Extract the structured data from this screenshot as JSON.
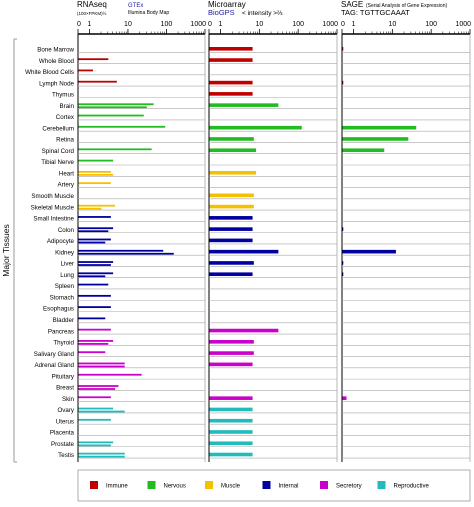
{
  "chart_data": {
    "type": "bar",
    "y_axis_label": "Major Tissues",
    "panels": [
      {
        "id": "rnaseq",
        "title": "RNAseq",
        "subtitle": "(100×FPKM)½",
        "sources": [
          {
            "text": "GTEx",
            "color": "#1a1aa6"
          },
          {
            "text": "Illumina Body Map",
            "color": "#000000"
          }
        ],
        "ticks": [
          "0",
          "1",
          "10",
          "100",
          "1000"
        ]
      },
      {
        "id": "microarray",
        "title": "Microarray",
        "subtitle": "< intensity >⅔",
        "sources": [
          {
            "text": "BioGPS",
            "color": "#1a1aa6"
          }
        ],
        "ticks": [
          "0",
          "1",
          "10",
          "100",
          "1000"
        ]
      },
      {
        "id": "sage",
        "title": "SAGE",
        "subtitle": "(Serial Analysis of Gene Expression)",
        "sources": [
          {
            "text": "TAG: TGTTGCAAAT",
            "color": "#000000"
          }
        ],
        "ticks": [
          "0",
          "1",
          "10",
          "100",
          "1000"
        ]
      }
    ],
    "legend": [
      {
        "key": "immune",
        "label": "Immune",
        "color": "#c00000"
      },
      {
        "key": "nervous",
        "label": "Nervous",
        "color": "#22bb22"
      },
      {
        "key": "muscle",
        "label": "Muscle",
        "color": "#f5c000"
      },
      {
        "key": "internal",
        "label": "Internal",
        "color": "#0000a0"
      },
      {
        "key": "secretory",
        "label": "Secretory",
        "color": "#cc00cc"
      },
      {
        "key": "reproductive",
        "label": "Reproductive",
        "color": "#22bbbb"
      }
    ],
    "tissues": [
      {
        "name": "Bone Marrow",
        "group": "immune",
        "rna": [],
        "micro": 6.5,
        "sage": 0.05
      },
      {
        "name": "Whole Blood",
        "group": "immune",
        "rna": [
          3.0
        ],
        "micro": 6.5,
        "sage": 0
      },
      {
        "name": "White Blood Cells",
        "group": "immune",
        "rna": [
          1.2
        ],
        "micro": 0,
        "sage": 0
      },
      {
        "name": "Lymph Node",
        "group": "immune",
        "rna": [
          5.0
        ],
        "micro": 6.5,
        "sage": 0.05
      },
      {
        "name": "Thymus",
        "group": "immune",
        "rna": [],
        "micro": 6.5,
        "sage": 0
      },
      {
        "name": "Brain",
        "group": "nervous",
        "rna": [
          45,
          30
        ],
        "micro": 30,
        "sage": 0
      },
      {
        "name": "Cortex",
        "group": "nervous",
        "rna": [
          25
        ],
        "micro": 0,
        "sage": 0
      },
      {
        "name": "Cerebellum",
        "group": "nervous",
        "rna": [
          90
        ],
        "micro": 120,
        "sage": 40
      },
      {
        "name": "Retina",
        "group": "nervous",
        "rna": [],
        "micro": 7,
        "sage": 25
      },
      {
        "name": "Spinal Cord",
        "group": "nervous",
        "rna": [
          40
        ],
        "micro": 8,
        "sage": 6
      },
      {
        "name": "Tibial Nerve",
        "group": "nervous",
        "rna": [
          4.0
        ],
        "micro": 0,
        "sage": 0
      },
      {
        "name": "Heart",
        "group": "muscle",
        "rna": [
          3.5,
          4.0
        ],
        "micro": 8,
        "sage": 0
      },
      {
        "name": "Artery",
        "group": "muscle",
        "rna": [
          3.5
        ],
        "micro": 0,
        "sage": 0
      },
      {
        "name": "Smooth Muscle",
        "group": "muscle",
        "rna": [],
        "micro": 7,
        "sage": 0
      },
      {
        "name": "Skeletal Muscle",
        "group": "muscle",
        "rna": [
          4.5,
          2.0
        ],
        "micro": 7,
        "sage": 0
      },
      {
        "name": "Small Intestine",
        "group": "internal",
        "rna": [
          3.5
        ],
        "micro": 6.5,
        "sage": 0
      },
      {
        "name": "Colon",
        "group": "internal",
        "rna": [
          4.0,
          3.0
        ],
        "micro": 6.5,
        "sage": 0.05
      },
      {
        "name": "Adipocyte",
        "group": "internal",
        "rna": [
          3.5,
          2.5
        ],
        "micro": 6.5,
        "sage": 0
      },
      {
        "name": "Kidney",
        "group": "internal",
        "rna": [
          80,
          150
        ],
        "micro": 30,
        "sage": 12
      },
      {
        "name": "Liver",
        "group": "internal",
        "rna": [
          4.0,
          3.5
        ],
        "micro": 7,
        "sage": 0.05
      },
      {
        "name": "Lung",
        "group": "internal",
        "rna": [
          4.0,
          2.5
        ],
        "micro": 6.5,
        "sage": 0.05
      },
      {
        "name": "Spleen",
        "group": "internal",
        "rna": [
          3.0
        ],
        "micro": 0,
        "sage": 0
      },
      {
        "name": "Stomach",
        "group": "internal",
        "rna": [
          3.5
        ],
        "micro": 0,
        "sage": 0
      },
      {
        "name": "Esophagus",
        "group": "internal",
        "rna": [
          3.5
        ],
        "micro": 0,
        "sage": 0
      },
      {
        "name": "Bladder",
        "group": "internal",
        "rna": [
          2.5
        ],
        "micro": 0,
        "sage": 0
      },
      {
        "name": "Pancreas",
        "group": "secretory",
        "rna": [
          3.5
        ],
        "micro": 30,
        "sage": 0
      },
      {
        "name": "Thyroid",
        "group": "secretory",
        "rna": [
          4.0,
          3.0
        ],
        "micro": 7,
        "sage": 0
      },
      {
        "name": "Salivary Gland",
        "group": "secretory",
        "rna": [
          2.5
        ],
        "micro": 7,
        "sage": 0
      },
      {
        "name": "Adrenal Gland",
        "group": "secretory",
        "rna": [
          8.0,
          8.0
        ],
        "micro": 6.5,
        "sage": 0
      },
      {
        "name": "Pituitary",
        "group": "secretory",
        "rna": [
          22
        ],
        "micro": 0,
        "sage": 0
      },
      {
        "name": "Breast",
        "group": "secretory",
        "rna": [
          5.5,
          4.5
        ],
        "micro": 0,
        "sage": 0
      },
      {
        "name": "Skin",
        "group": "secretory",
        "rna": [
          3.5
        ],
        "micro": 6.5,
        "sage": 0.35
      },
      {
        "name": "Ovary",
        "group": "reproductive",
        "rna": [
          4.0,
          8.0
        ],
        "micro": 6.5,
        "sage": 0
      },
      {
        "name": "Uterus",
        "group": "reproductive",
        "rna": [
          3.5
        ],
        "micro": 6.5,
        "sage": 0
      },
      {
        "name": "Placenta",
        "group": "reproductive",
        "rna": [],
        "micro": 6.5,
        "sage": 0
      },
      {
        "name": "Prostate",
        "group": "reproductive",
        "rna": [
          4.0,
          3.5
        ],
        "micro": 6.5,
        "sage": 0
      },
      {
        "name": "Testis",
        "group": "reproductive",
        "rna": [
          8.0,
          8.0
        ],
        "micro": 6.5,
        "sage": 0
      }
    ]
  }
}
